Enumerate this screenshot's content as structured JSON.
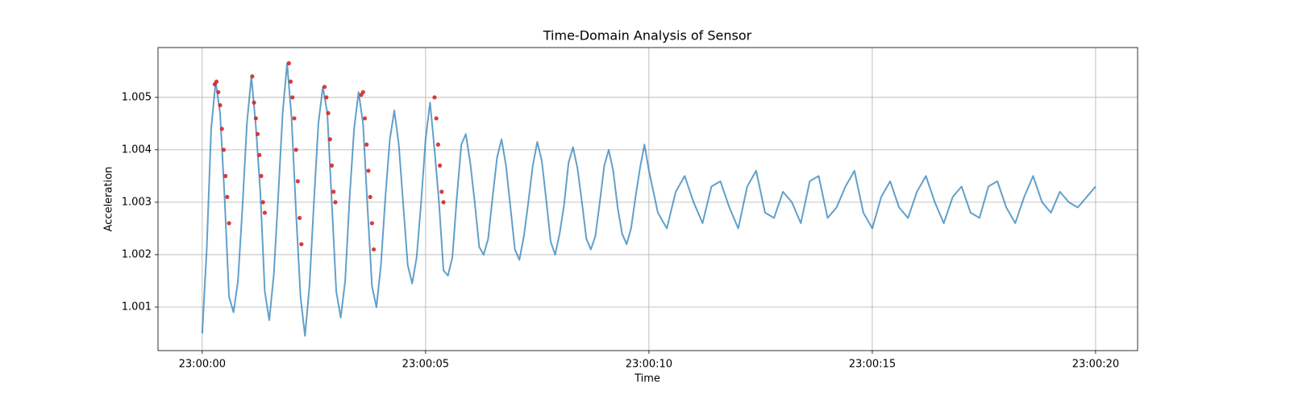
{
  "chart_data": {
    "type": "line",
    "title": "Time-Domain Analysis of Sensor",
    "xlabel": "Time",
    "ylabel": "Acceleration",
    "xlim": [
      -0.99,
      20.94
    ],
    "ylim": [
      1.00017,
      1.00595
    ],
    "xticks": [
      {
        "value": 0,
        "label": "23:00:00"
      },
      {
        "value": 5,
        "label": "23:00:05"
      },
      {
        "value": 10,
        "label": "23:00:10"
      },
      {
        "value": 15,
        "label": "23:00:15"
      },
      {
        "value": 20,
        "label": "23:00:20"
      }
    ],
    "yticks": [
      1.001,
      1.002,
      1.003,
      1.004,
      1.005
    ],
    "grid": true,
    "series": [
      {
        "type": "line",
        "color": "#1f77b4",
        "x": [
          0,
          0.1,
          0.2,
          0.3,
          0.4,
          0.5,
          0.6,
          0.7,
          0.8,
          0.9,
          1,
          1.1,
          1.2,
          1.3,
          1.4,
          1.5,
          1.6,
          1.7,
          1.8,
          1.9,
          2,
          2.1,
          2.2,
          2.3,
          2.4,
          2.5,
          2.6,
          2.7,
          2.8,
          2.9,
          3,
          3.1,
          3.2,
          3.3,
          3.4,
          3.5,
          3.6,
          3.7,
          3.8,
          3.9,
          4,
          4.1,
          4.2,
          4.3,
          4.4,
          4.5,
          4.6,
          4.7,
          4.8,
          4.9,
          5,
          5.1,
          5.2,
          5.3,
          5.4,
          5.5,
          5.6,
          5.7,
          5.8,
          5.9,
          6,
          6.1,
          6.2,
          6.3,
          6.4,
          6.5,
          6.6,
          6.7,
          6.8,
          6.9,
          7,
          7.1,
          7.2,
          7.3,
          7.4,
          7.5,
          7.6,
          7.7,
          7.8,
          7.9,
          8,
          8.1,
          8.2,
          8.3,
          8.4,
          8.5,
          8.6,
          8.7,
          8.8,
          8.9,
          9,
          9.1,
          9.2,
          9.3,
          9.4,
          9.5,
          9.6,
          9.7,
          9.8,
          9.9,
          10,
          10.2,
          10.4,
          10.6,
          10.8,
          11,
          11.2,
          11.4,
          11.6,
          11.8,
          12,
          12.2,
          12.4,
          12.6,
          12.8,
          13,
          13.2,
          13.4,
          13.6,
          13.8,
          14,
          14.2,
          14.4,
          14.6,
          14.8,
          15,
          15.2,
          15.4,
          15.6,
          15.8,
          16,
          16.2,
          16.4,
          16.6,
          16.8,
          17,
          17.2,
          17.4,
          17.6,
          17.8,
          18,
          18.2,
          18.4,
          18.6,
          18.8,
          19,
          19.2,
          19.4,
          19.6,
          19.8,
          20
        ],
        "values": [
          1.0005,
          1.0021,
          1.0044,
          1.0053,
          1.0047,
          1.0031,
          1.0012,
          1.0009,
          1.0015,
          1.0029,
          1.0045,
          1.0054,
          1.00445,
          1.0032,
          1.0013,
          1.00075,
          1.0016,
          1.0031,
          1.0047,
          1.00565,
          1.0046,
          1.0028,
          1.0012,
          1.00045,
          1.0014,
          1.003,
          1.0045,
          1.0052,
          1.0047,
          1.003,
          1.0013,
          1.0008,
          1.0015,
          1.0031,
          1.0044,
          1.0051,
          1.0045,
          1.0029,
          1.0014,
          1.001,
          1.0018,
          1.0031,
          1.0042,
          1.00475,
          1.0041,
          1.00295,
          1.0018,
          1.00145,
          1.00195,
          1.003,
          1.0042,
          1.0049,
          1.004,
          1.003,
          1.0017,
          1.0016,
          1.00195,
          1.0031,
          1.0041,
          1.0043,
          1.00375,
          1.003,
          1.00215,
          1.002,
          1.0023,
          1.0031,
          1.00385,
          1.0042,
          1.0037,
          1.0029,
          1.0021,
          1.0019,
          1.00235,
          1.003,
          1.0037,
          1.00415,
          1.0038,
          1.00305,
          1.00225,
          1.002,
          1.0024,
          1.00295,
          1.00375,
          1.00405,
          1.00365,
          1.003,
          1.0023,
          1.0021,
          1.00235,
          1.003,
          1.0037,
          1.004,
          1.0036,
          1.0029,
          1.0024,
          1.0022,
          1.0025,
          1.0031,
          1.00365,
          1.0041,
          1.0036,
          1.0028,
          1.0025,
          1.0032,
          1.0035,
          1.003,
          1.0026,
          1.0033,
          1.0034,
          1.0029,
          1.0025,
          1.0033,
          1.0036,
          1.0028,
          1.0027,
          1.0032,
          1.003,
          1.0026,
          1.0034,
          1.0035,
          1.0027,
          1.0029,
          1.0033,
          1.0036,
          1.0028,
          1.0025,
          1.0031,
          1.0034,
          1.0029,
          1.0027,
          1.0032,
          1.0035,
          1.003,
          1.0026,
          1.0031,
          1.0033,
          1.0028,
          1.0027,
          1.0033,
          1.0034,
          1.0029,
          1.0026,
          1.0031,
          1.0035,
          1.003,
          1.0028,
          1.0032,
          1.003,
          1.0029,
          1.0031,
          1.0033
        ]
      },
      {
        "type": "scatter",
        "color": "#d62728",
        "x": [
          0.28,
          0.32,
          0.36,
          0.4,
          0.44,
          0.48,
          0.52,
          0.56,
          0.6,
          1.12,
          1.16,
          1.2,
          1.24,
          1.28,
          1.32,
          1.36,
          1.4,
          1.94,
          1.98,
          2.02,
          2.06,
          2.1,
          2.14,
          2.18,
          2.22,
          2.74,
          2.78,
          2.82,
          2.86,
          2.9,
          2.94,
          2.98,
          3.56,
          3.6,
          3.64,
          3.68,
          3.72,
          3.76,
          3.8,
          3.84,
          5.2,
          5.24,
          5.28,
          5.32,
          5.36,
          5.4
        ],
        "values": [
          1.00525,
          1.0053,
          1.0051,
          1.00485,
          1.0044,
          1.004,
          1.0035,
          1.0031,
          1.0026,
          1.0054,
          1.0049,
          1.0046,
          1.0043,
          1.0039,
          1.0035,
          1.003,
          1.0028,
          1.00565,
          1.0053,
          1.005,
          1.0046,
          1.004,
          1.0034,
          1.0027,
          1.0022,
          1.0052,
          1.005,
          1.0047,
          1.0042,
          1.0037,
          1.0032,
          1.003,
          1.00505,
          1.0051,
          1.0046,
          1.0041,
          1.0036,
          1.0031,
          1.0026,
          1.0021,
          1.005,
          1.0046,
          1.0041,
          1.0037,
          1.0032,
          1.003
        ]
      }
    ]
  }
}
